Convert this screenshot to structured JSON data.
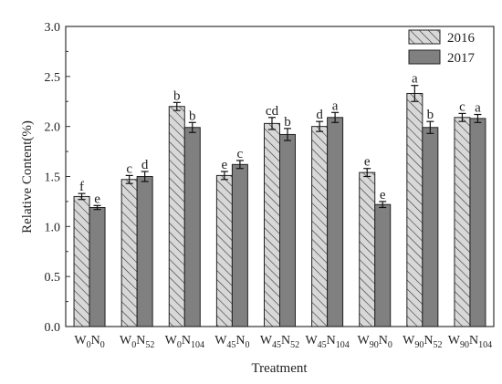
{
  "chart_data": {
    "type": "bar",
    "xlabel": "Treatment",
    "ylabel": "Relative Content(%)",
    "ylim": [
      0,
      3.0
    ],
    "yticks": [
      "0.0",
      "0.5",
      "1.0",
      "1.5",
      "2.0",
      "2.5",
      "3.0"
    ],
    "grid": false,
    "legend_position": "top-right",
    "categories": [
      {
        "main": "W",
        "sub1": "0",
        "mid": "N",
        "sub2": "0"
      },
      {
        "main": "W",
        "sub1": "0",
        "mid": "N",
        "sub2": "52"
      },
      {
        "main": "W",
        "sub1": "0",
        "mid": "N",
        "sub2": "104"
      },
      {
        "main": "W",
        "sub1": "45",
        "mid": "N",
        "sub2": "0"
      },
      {
        "main": "W",
        "sub1": "45",
        "mid": "N",
        "sub2": "52"
      },
      {
        "main": "W",
        "sub1": "45",
        "mid": "N",
        "sub2": "104"
      },
      {
        "main": "W",
        "sub1": "90",
        "mid": "N",
        "sub2": "0"
      },
      {
        "main": "W",
        "sub1": "90",
        "mid": "N",
        "sub2": "52"
      },
      {
        "main": "W",
        "sub1": "90",
        "mid": "N",
        "sub2": "104"
      }
    ],
    "series": [
      {
        "name": "2016",
        "pattern": "hatched",
        "fill": "#d8d8d8",
        "values": [
          1.3,
          1.47,
          2.2,
          1.51,
          2.03,
          2.0,
          1.54,
          2.33,
          2.09
        ],
        "errors": [
          0.03,
          0.04,
          0.04,
          0.04,
          0.06,
          0.05,
          0.04,
          0.08,
          0.04
        ],
        "sig": [
          "f",
          "c",
          "b",
          "e",
          "cd",
          "d",
          "e",
          "a",
          "c"
        ]
      },
      {
        "name": "2017",
        "pattern": "solid",
        "fill": "#808080",
        "values": [
          1.19,
          1.5,
          1.99,
          1.62,
          1.92,
          2.09,
          1.22,
          1.99,
          2.08
        ],
        "errors": [
          0.02,
          0.05,
          0.05,
          0.04,
          0.06,
          0.05,
          0.03,
          0.06,
          0.04
        ],
        "sig": [
          "e",
          "d",
          "b",
          "c",
          "b",
          "a",
          "e",
          "b",
          "a"
        ]
      }
    ]
  }
}
